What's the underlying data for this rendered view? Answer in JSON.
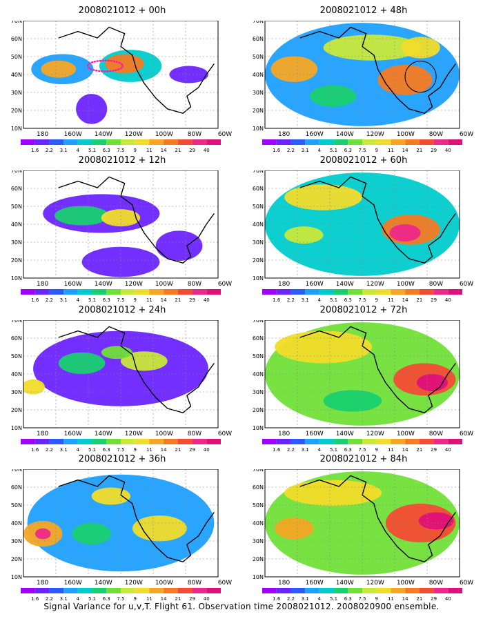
{
  "panels": [
    {
      "title": "2008021012 + 00h"
    },
    {
      "title": "2008021012 + 12h"
    },
    {
      "title": "2008021012 + 24h"
    },
    {
      "title": "2008021012 + 36h"
    },
    {
      "title": "2008021012 + 48h"
    },
    {
      "title": "2008021012 + 60h"
    },
    {
      "title": "2008021012 + 72h"
    },
    {
      "title": "2008021012 + 84h"
    }
  ],
  "axes": {
    "lat_labels": [
      "70N",
      "60N",
      "50N",
      "40N",
      "30N",
      "20N",
      "10N"
    ],
    "lon_labels": [
      "180",
      "160W",
      "140W",
      "120W",
      "100W",
      "80W",
      "60W"
    ]
  },
  "colorbar": {
    "labels": [
      "1.6",
      "2.2",
      "3.1",
      "4",
      "5.1",
      "6.3",
      "7.5",
      "9",
      "11",
      "14",
      "21",
      "29",
      "40"
    ],
    "colors": [
      "#a000ff",
      "#6a24ff",
      "#2b5bff",
      "#1ea0ff",
      "#00cccc",
      "#18d070",
      "#70e038",
      "#c8e83a",
      "#f2dc2a",
      "#f6a624",
      "#f57a22",
      "#f44c34",
      "#ee2888",
      "#e0107a"
    ]
  },
  "footer": "Signal Variance for u,v,T. Flight 61. Observation time 2008021012. 2008020900 ensemble."
}
